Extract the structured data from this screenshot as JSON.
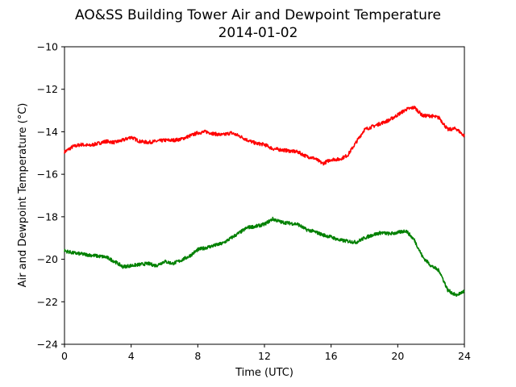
{
  "chart_data": {
    "type": "line",
    "title": "AO&SS Building Tower Air and Dewpoint Temperature",
    "subtitle": "2014-01-02",
    "xlabel": "Time (UTC)",
    "ylabel": "Air and Dewpoint Temperature (°C)",
    "xlim": [
      0,
      24
    ],
    "ylim": [
      -24,
      -10
    ],
    "xticks": [
      "0",
      "4",
      "8",
      "12",
      "16",
      "20",
      "24"
    ],
    "yticks": [
      "−24",
      "−22",
      "−20",
      "−18",
      "−16",
      "−14",
      "−12",
      "−10"
    ],
    "grid": false,
    "series": [
      {
        "color": "#ff0000",
        "x": [
          0,
          0.5,
          1,
          1.5,
          2,
          2.5,
          3,
          3.5,
          4,
          4.5,
          5,
          5.5,
          6,
          6.5,
          7,
          7.5,
          8,
          8.5,
          9,
          9.5,
          10,
          10.5,
          11,
          11.5,
          12,
          12.5,
          13,
          13.5,
          14,
          14.5,
          15,
          15.5,
          16,
          16.5,
          17,
          17.5,
          18,
          18.5,
          19,
          19.5,
          20,
          20.5,
          21,
          21.5,
          22,
          22.5,
          23,
          23.5,
          24
        ],
        "y": [
          -14.95,
          -14.7,
          -14.6,
          -14.65,
          -14.55,
          -14.45,
          -14.5,
          -14.4,
          -14.25,
          -14.45,
          -14.5,
          -14.45,
          -14.4,
          -14.4,
          -14.35,
          -14.2,
          -14.05,
          -14.0,
          -14.1,
          -14.15,
          -14.05,
          -14.2,
          -14.4,
          -14.55,
          -14.6,
          -14.8,
          -14.85,
          -14.9,
          -14.95,
          -15.15,
          -15.25,
          -15.5,
          -15.3,
          -15.3,
          -15.1,
          -14.5,
          -13.9,
          -13.75,
          -13.6,
          -13.45,
          -13.2,
          -12.95,
          -12.85,
          -13.25,
          -13.25,
          -13.35,
          -13.9,
          -13.85,
          -14.2
        ]
      },
      {
        "color": "#008000",
        "x": [
          0,
          0.5,
          1,
          1.5,
          2,
          2.5,
          3,
          3.5,
          4,
          4.5,
          5,
          5.5,
          6,
          6.5,
          7,
          7.5,
          8,
          8.5,
          9,
          9.5,
          10,
          10.5,
          11,
          11.5,
          12,
          12.5,
          13,
          13.5,
          14,
          14.5,
          15,
          15.5,
          16,
          16.5,
          17,
          17.5,
          18,
          18.5,
          19,
          19.5,
          20,
          20.5,
          21,
          21.5,
          22,
          22.5,
          23,
          23.5,
          24
        ],
        "y": [
          -19.6,
          -19.7,
          -19.75,
          -19.8,
          -19.85,
          -19.9,
          -20.1,
          -20.35,
          -20.3,
          -20.25,
          -20.2,
          -20.3,
          -20.1,
          -20.2,
          -20.05,
          -19.85,
          -19.55,
          -19.45,
          -19.35,
          -19.25,
          -19.0,
          -18.75,
          -18.5,
          -18.45,
          -18.35,
          -18.1,
          -18.25,
          -18.3,
          -18.35,
          -18.6,
          -18.7,
          -18.85,
          -18.95,
          -19.1,
          -19.15,
          -19.2,
          -19.0,
          -18.85,
          -18.75,
          -18.8,
          -18.75,
          -18.65,
          -19.1,
          -19.9,
          -20.3,
          -20.55,
          -21.45,
          -21.7,
          -21.5
        ]
      }
    ]
  }
}
